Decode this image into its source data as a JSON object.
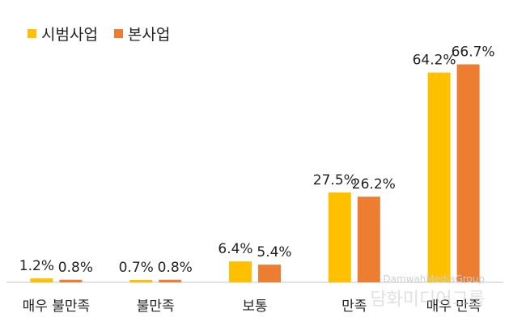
{
  "chart_data": {
    "type": "bar",
    "categories": [
      "매우 불만족",
      "불만족",
      "보통",
      "만족",
      "매우 만족"
    ],
    "series": [
      {
        "name": "시범사업",
        "values": [
          1.2,
          0.7,
          6.4,
          27.5,
          64.2
        ],
        "labels": [
          "1.2%",
          "0.7%",
          "6.4%",
          "27.5%",
          "64.2%"
        ],
        "color": "#FFC000"
      },
      {
        "name": "본사업",
        "values": [
          0.8,
          0.8,
          5.4,
          26.2,
          66.7
        ],
        "labels": [
          "0.8%",
          "0.8%",
          "5.4%",
          "26.2%",
          "66.7%"
        ],
        "color": "#ED7D31"
      }
    ],
    "ylim": [
      0,
      70
    ],
    "grid": false,
    "legend_position": "top-left",
    "axis_color": "#D9D9D9"
  },
  "watermark": {
    "line1": "DamwahMediaGroup",
    "line2": "담화미디어그룹"
  }
}
